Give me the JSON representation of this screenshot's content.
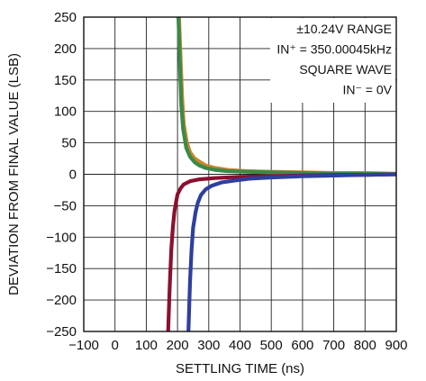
{
  "chart_data": {
    "type": "line",
    "title": "",
    "xlabel": "SETTLING TIME (ns)",
    "ylabel": "DEVIATION FROM FINAL VALUE (LSB)",
    "xlim": [
      -100,
      900
    ],
    "ylim": [
      -250,
      250
    ],
    "x_ticks": [
      -100,
      0,
      100,
      200,
      300,
      400,
      500,
      600,
      700,
      800,
      900
    ],
    "x_tick_labels": [
      "−100",
      "0",
      "100",
      "200",
      "300",
      "400",
      "500",
      "600",
      "700",
      "800",
      "900"
    ],
    "y_ticks": [
      250,
      200,
      150,
      100,
      50,
      0,
      -50,
      -100,
      -150,
      -200,
      -250
    ],
    "y_tick_labels": [
      "250",
      "200",
      "150",
      "100",
      "50",
      "0",
      "−50",
      "−100",
      "−150",
      "−200",
      "−250"
    ],
    "grid": true,
    "annotation_lines": [
      "±10.24V RANGE",
      "IN⁺ = 350.00045kHz",
      "SQUARE WAVE",
      "IN⁻ = 0V"
    ],
    "series": [
      {
        "color": "#c8862a",
        "x": [
          205,
          210,
          215,
          220,
          230,
          240,
          255,
          270,
          290,
          320,
          360,
          420,
          500,
          600,
          700,
          800,
          900
        ],
        "y": [
          250,
          180,
          120,
          80,
          50,
          35,
          25,
          20,
          14,
          10,
          7,
          5,
          4,
          3,
          2,
          2,
          1
        ]
      },
      {
        "color": "#3a8a4a",
        "x": [
          203,
          208,
          212,
          218,
          228,
          240,
          255,
          270,
          290,
          320,
          360,
          420,
          500,
          600,
          700,
          800,
          900
        ],
        "y": [
          250,
          170,
          110,
          72,
          42,
          28,
          19,
          14,
          10,
          7,
          5,
          4,
          3,
          2,
          1,
          1,
          0
        ]
      },
      {
        "color": "#8b1030",
        "x": [
          170,
          175,
          180,
          185,
          190,
          195,
          200,
          210,
          220,
          240,
          270,
          320,
          400,
          500,
          600,
          700,
          800,
          900
        ],
        "y": [
          -250,
          -180,
          -120,
          -85,
          -60,
          -45,
          -32,
          -22,
          -16,
          -11,
          -8,
          -6,
          -4,
          -3,
          -2,
          -1,
          -1,
          0
        ]
      },
      {
        "color": "#2e3f9e",
        "x": [
          235,
          240,
          245,
          250,
          258,
          265,
          275,
          290,
          310,
          340,
          380,
          430,
          500,
          600,
          700,
          800,
          900
        ],
        "y": [
          -250,
          -170,
          -120,
          -85,
          -60,
          -45,
          -33,
          -24,
          -18,
          -13,
          -10,
          -7,
          -5,
          -3,
          -2,
          -1,
          0
        ]
      }
    ]
  }
}
